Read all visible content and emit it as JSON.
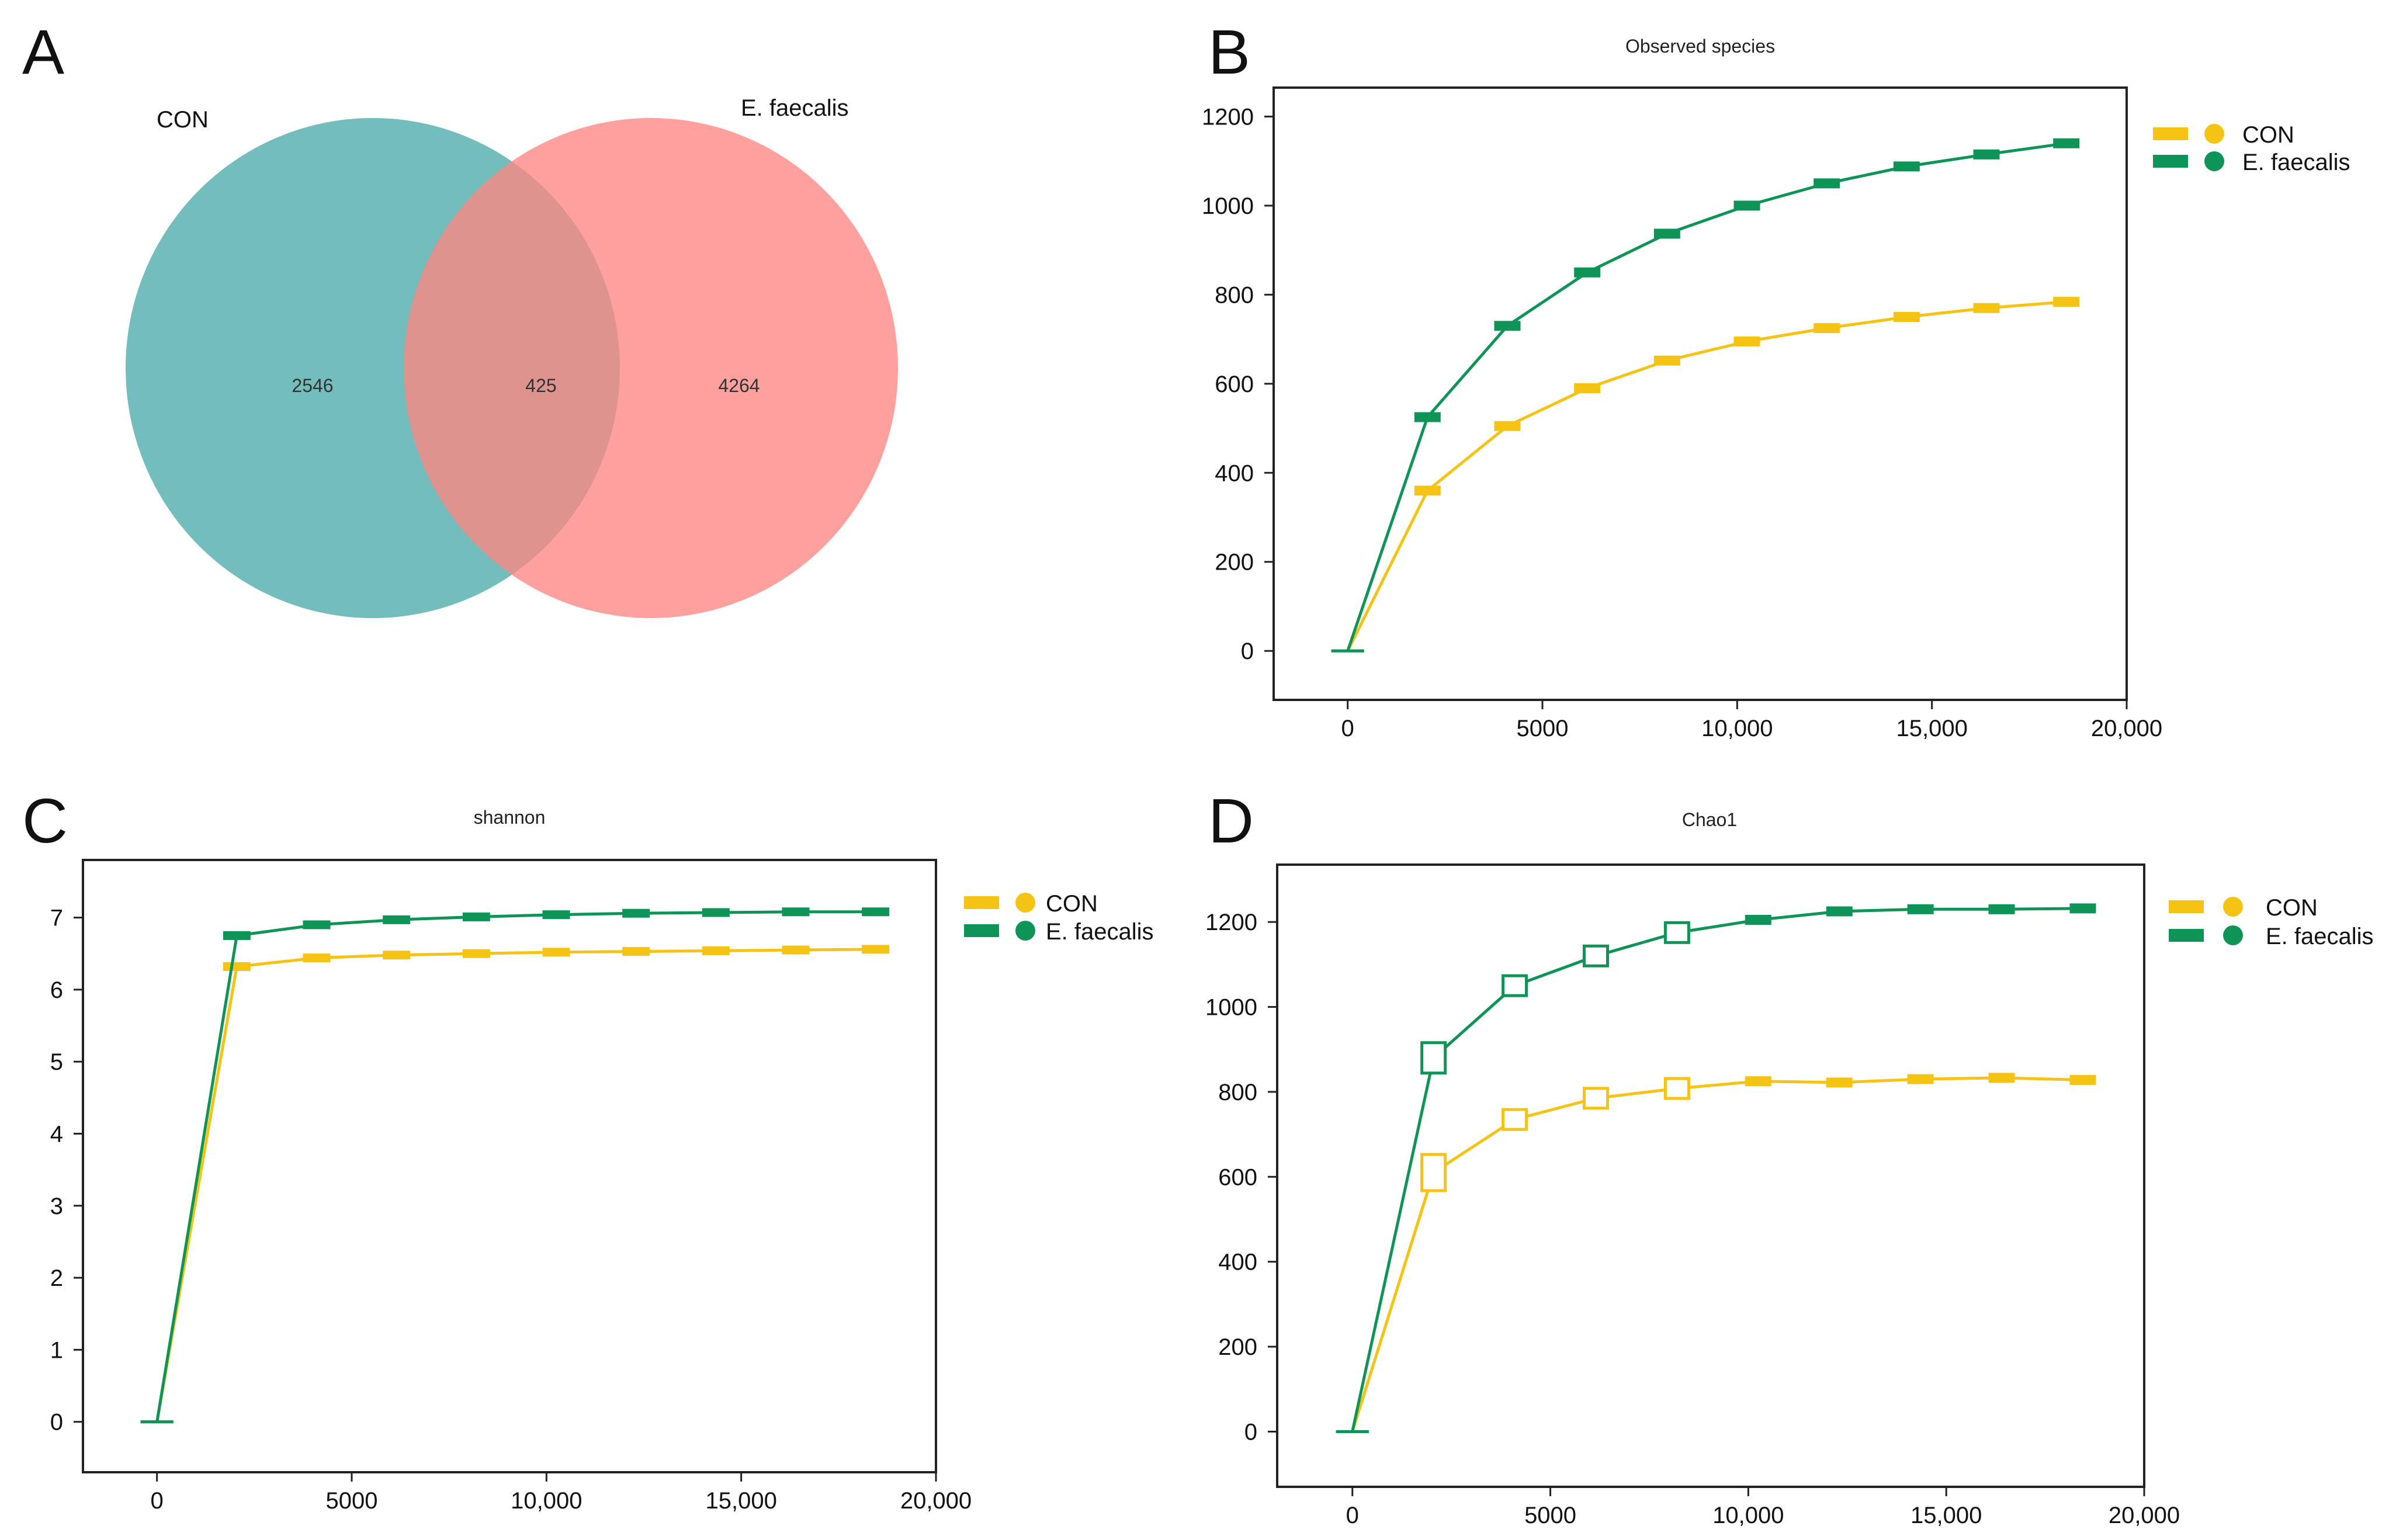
{
  "panels": {
    "A": "A",
    "B": "B",
    "C": "C",
    "D": "D"
  },
  "colors": {
    "con": "#F5C313",
    "efaecalis": "#0E9457",
    "venn_con": "#5BB2B0",
    "venn_ef": "#FE8783"
  },
  "venn": {
    "set_a_label": "CON",
    "set_b_label": "E. faecalis",
    "only_a": "2546",
    "overlap": "425",
    "only_b": "4264"
  },
  "chart_data": [
    {
      "type": "line",
      "panel": "B",
      "title": "Observed species",
      "xlabel": "",
      "ylabel": "",
      "xlim": [
        -1900,
        20000
      ],
      "ylim": [
        -110,
        1265
      ],
      "x_ticks": [
        "0",
        "5000",
        "10,000",
        "15,000",
        "20,000"
      ],
      "x_tick_values": [
        0,
        5000,
        10000,
        15000,
        20000
      ],
      "y_ticks": [
        "0",
        "200",
        "400",
        "600",
        "800",
        "1000",
        "1200"
      ],
      "y_tick_values": [
        0,
        200,
        400,
        600,
        800,
        1000,
        1200
      ],
      "x": [
        0,
        2050,
        4100,
        6150,
        8200,
        10250,
        12300,
        14350,
        16400,
        18450
      ],
      "series": [
        {
          "name": "CON",
          "values": [
            0,
            360,
            505,
            590,
            652,
            695,
            725,
            750,
            770,
            784
          ]
        },
        {
          "name": "E. faecalis",
          "values": [
            0,
            525,
            730,
            850,
            937,
            1000,
            1050,
            1088,
            1115,
            1140
          ]
        }
      ],
      "legend": [
        "CON",
        "E. faecalis"
      ],
      "legend_position": "right"
    },
    {
      "type": "line",
      "panel": "C",
      "title": "shannon",
      "xlabel": "",
      "ylabel": "",
      "xlim": [
        -1900,
        20000
      ],
      "ylim": [
        -0.7,
        7.8
      ],
      "x_ticks": [
        "0",
        "5000",
        "10,000",
        "15,000",
        "20,000"
      ],
      "x_tick_values": [
        0,
        5000,
        10000,
        15000,
        20000
      ],
      "y_ticks": [
        "0",
        "1",
        "2",
        "3",
        "4",
        "5",
        "6",
        "7"
      ],
      "y_tick_values": [
        0,
        1,
        2,
        3,
        4,
        5,
        6,
        7
      ],
      "x": [
        0,
        2050,
        4100,
        6150,
        8200,
        10250,
        12300,
        14350,
        16400,
        18450
      ],
      "series": [
        {
          "name": "CON",
          "values": [
            0,
            6.32,
            6.44,
            6.48,
            6.5,
            6.52,
            6.53,
            6.54,
            6.55,
            6.56
          ]
        },
        {
          "name": "E. faecalis",
          "values": [
            0,
            6.75,
            6.9,
            6.97,
            7.01,
            7.04,
            7.06,
            7.07,
            7.08,
            7.08
          ]
        }
      ],
      "legend": [
        "CON",
        "E. faecalis"
      ],
      "legend_position": "right"
    },
    {
      "type": "line",
      "panel": "D",
      "title": "Chao1",
      "xlabel": "",
      "ylabel": "",
      "xlim": [
        -1900,
        20000
      ],
      "ylim": [
        -130,
        1335
      ],
      "x_ticks": [
        "0",
        "5000",
        "10,000",
        "15,000",
        "20,000"
      ],
      "x_tick_values": [
        0,
        5000,
        10000,
        15000,
        20000
      ],
      "y_ticks": [
        "0",
        "200",
        "400",
        "600",
        "800",
        "1000",
        "1200"
      ],
      "y_tick_values": [
        0,
        200,
        400,
        600,
        800,
        1000,
        1200
      ],
      "x": [
        0,
        2050,
        4100,
        6150,
        8200,
        10250,
        12300,
        14350,
        16400,
        18450
      ],
      "series": [
        {
          "name": "CON",
          "values": [
            0,
            610,
            735,
            785,
            808,
            825,
            822,
            830,
            833,
            828
          ]
        },
        {
          "name": "E. faecalis",
          "values": [
            0,
            880,
            1050,
            1120,
            1175,
            1205,
            1225,
            1230,
            1230,
            1232
          ]
        }
      ],
      "legend": [
        "CON",
        "E. faecalis"
      ],
      "legend_position": "right"
    }
  ]
}
